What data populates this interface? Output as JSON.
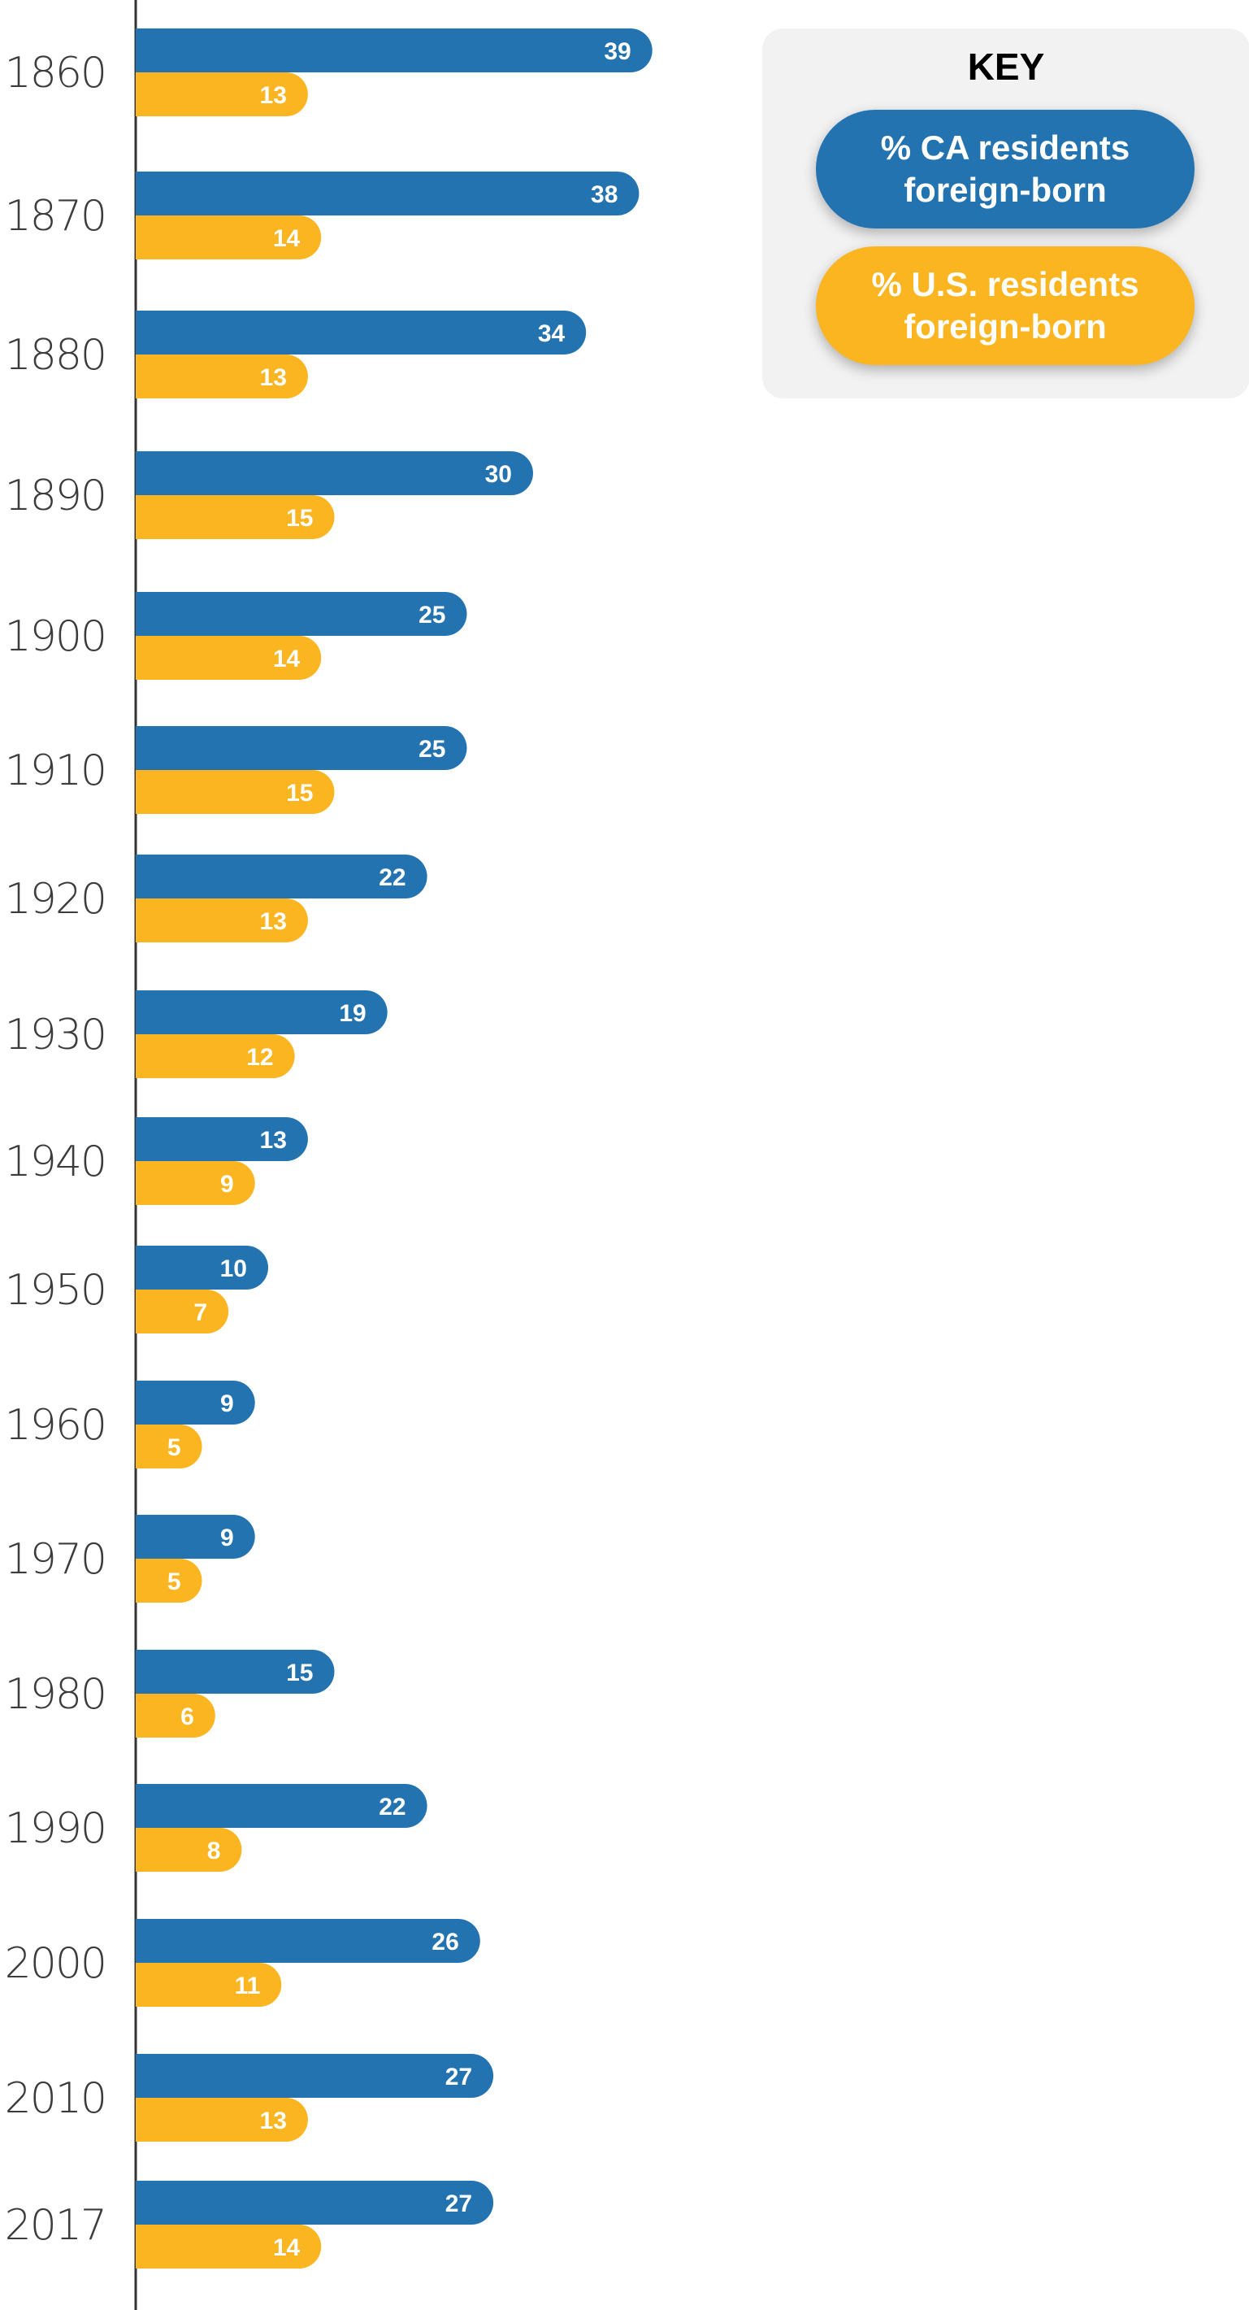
{
  "chart_data": {
    "type": "bar",
    "orientation": "horizontal",
    "categories": [
      "1860",
      "1870",
      "1880",
      "1890",
      "1900",
      "1910",
      "1920",
      "1930",
      "1940",
      "1950",
      "1960",
      "1970",
      "1980",
      "1990",
      "2000",
      "2010",
      "2017"
    ],
    "series": [
      {
        "name": "% CA residents foreign-born",
        "color": "#2473b1",
        "values": [
          39,
          38,
          34,
          30,
          25,
          25,
          22,
          19,
          13,
          10,
          9,
          9,
          15,
          22,
          26,
          27,
          27
        ]
      },
      {
        "name": "% U.S. residents foreign-born",
        "color": "#fbb520",
        "values": [
          13,
          14,
          13,
          15,
          14,
          15,
          13,
          12,
          9,
          7,
          5,
          5,
          6,
          8,
          11,
          13,
          14
        ]
      }
    ],
    "legend": {
      "title": "KEY",
      "position": "top-right"
    },
    "grid": false,
    "xlim": [
      0,
      39
    ]
  }
}
